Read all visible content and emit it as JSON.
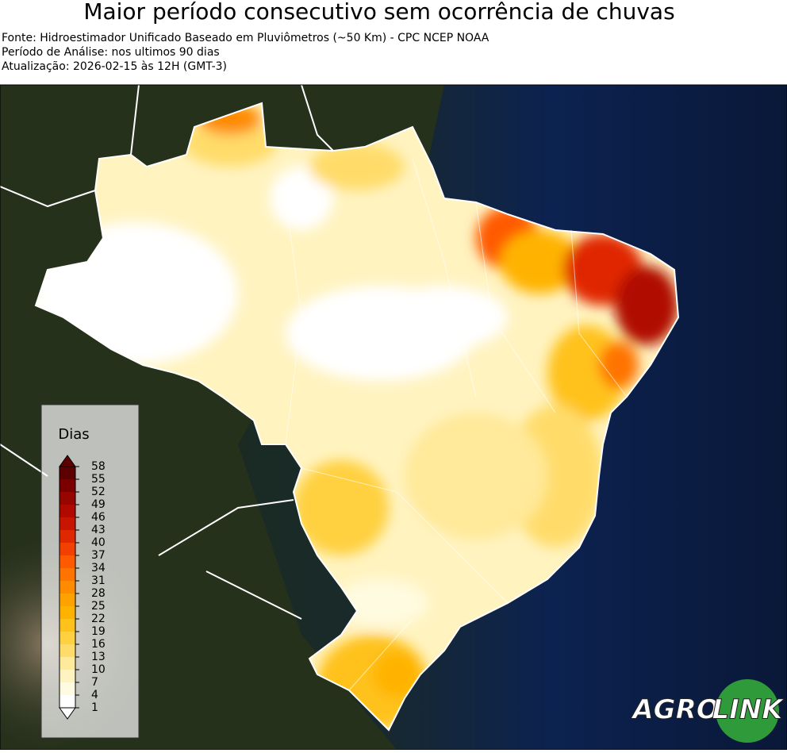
{
  "header": {
    "title": "Maior período consecutivo sem ocorrência de chuvas",
    "lines": [
      "Fonte: Hidroestimador Unificado Baseado em Pluviômetros (~50 Km) - CPC NCEP NOAA",
      "Período de Análise: nos ultimos 90 dias",
      "Atualização: 2026-02-15 às 12H (GMT-3)"
    ]
  },
  "colorbar": {
    "title": "Dias",
    "ticks": [
      1,
      4,
      7,
      10,
      13,
      16,
      19,
      22,
      25,
      28,
      31,
      34,
      37,
      40,
      43,
      46,
      49,
      52,
      55,
      58
    ],
    "colors": [
      "#ffffff",
      "#fffbe0",
      "#fff3c0",
      "#ffe99a",
      "#ffdc6a",
      "#ffd040",
      "#ffc21a",
      "#ffb300",
      "#ffa200",
      "#ff8c00",
      "#ff7300",
      "#ff5a00",
      "#f24000",
      "#e02800",
      "#c81500",
      "#b00a00",
      "#960500",
      "#7a0000",
      "#5c0000"
    ]
  },
  "logo": {
    "left": "AGRO",
    "right": "LINK"
  }
}
